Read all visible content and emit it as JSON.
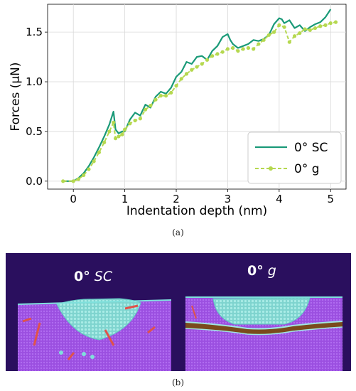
{
  "chart_data": {
    "type": "line",
    "xlabel": "Indentation depth (nm)",
    "ylabel": "Forces (μN)",
    "xlim": [
      -0.5,
      5.3
    ],
    "ylim": [
      -0.08,
      1.78
    ],
    "xticks": [
      0,
      1,
      2,
      3,
      4,
      5
    ],
    "yticks": [
      0.0,
      0.5,
      1.0,
      1.5
    ],
    "ytick_labels": [
      "0.0",
      "0.5",
      "1.0",
      "1.5"
    ],
    "grid": true,
    "legend_position": "lower right",
    "series": [
      {
        "name": "0° SC",
        "color": "#1a9a78",
        "style": "solid",
        "x": [
          -0.2,
          0.0,
          0.1,
          0.2,
          0.3,
          0.4,
          0.5,
          0.6,
          0.7,
          0.78,
          0.82,
          0.88,
          0.95,
          1.0,
          1.1,
          1.2,
          1.3,
          1.4,
          1.5,
          1.6,
          1.7,
          1.8,
          1.9,
          2.0,
          2.1,
          2.2,
          2.3,
          2.4,
          2.5,
          2.6,
          2.7,
          2.8,
          2.9,
          3.0,
          3.05,
          3.1,
          3.2,
          3.3,
          3.4,
          3.5,
          3.6,
          3.7,
          3.8,
          3.9,
          4.0,
          4.05,
          4.1,
          4.2,
          4.3,
          4.4,
          4.5,
          4.6,
          4.7,
          4.8,
          4.9,
          5.0
        ],
        "y": [
          0.0,
          0.0,
          0.03,
          0.08,
          0.15,
          0.24,
          0.34,
          0.45,
          0.57,
          0.7,
          0.52,
          0.48,
          0.5,
          0.5,
          0.62,
          0.69,
          0.66,
          0.77,
          0.74,
          0.85,
          0.9,
          0.88,
          0.94,
          1.05,
          1.1,
          1.2,
          1.18,
          1.25,
          1.26,
          1.22,
          1.31,
          1.36,
          1.45,
          1.48,
          1.42,
          1.38,
          1.34,
          1.36,
          1.38,
          1.42,
          1.41,
          1.43,
          1.47,
          1.58,
          1.64,
          1.63,
          1.59,
          1.62,
          1.54,
          1.57,
          1.51,
          1.55,
          1.58,
          1.6,
          1.65,
          1.73
        ]
      },
      {
        "name": "0° g",
        "color": "#b5d84f",
        "style": "dashed-markers",
        "x": [
          -0.2,
          0.0,
          0.1,
          0.2,
          0.3,
          0.4,
          0.5,
          0.6,
          0.7,
          0.78,
          0.82,
          0.88,
          0.95,
          1.0,
          1.1,
          1.2,
          1.3,
          1.4,
          1.5,
          1.6,
          1.7,
          1.8,
          1.9,
          2.0,
          2.1,
          2.2,
          2.3,
          2.4,
          2.5,
          2.6,
          2.7,
          2.8,
          2.9,
          3.0,
          3.1,
          3.2,
          3.3,
          3.4,
          3.5,
          3.6,
          3.7,
          3.8,
          3.9,
          4.0,
          4.1,
          4.2,
          4.3,
          4.4,
          4.5,
          4.6,
          4.7,
          4.8,
          4.9,
          5.0,
          5.1
        ],
        "y": [
          0.0,
          0.0,
          0.02,
          0.06,
          0.12,
          0.2,
          0.29,
          0.39,
          0.5,
          0.59,
          0.43,
          0.45,
          0.47,
          0.52,
          0.58,
          0.61,
          0.63,
          0.72,
          0.76,
          0.82,
          0.86,
          0.86,
          0.89,
          0.96,
          1.03,
          1.08,
          1.12,
          1.15,
          1.18,
          1.22,
          1.26,
          1.28,
          1.3,
          1.33,
          1.34,
          1.31,
          1.33,
          1.34,
          1.33,
          1.38,
          1.42,
          1.47,
          1.5,
          1.57,
          1.55,
          1.4,
          1.46,
          1.49,
          1.53,
          1.52,
          1.54,
          1.56,
          1.57,
          1.59,
          1.6
        ]
      }
    ]
  },
  "captions": {
    "a": "(a)",
    "b": "(b)"
  },
  "panel_b": {
    "left_label_bold": "0°",
    "left_label_italic": "SC",
    "right_label_bold": "0°",
    "right_label_italic": "g"
  }
}
